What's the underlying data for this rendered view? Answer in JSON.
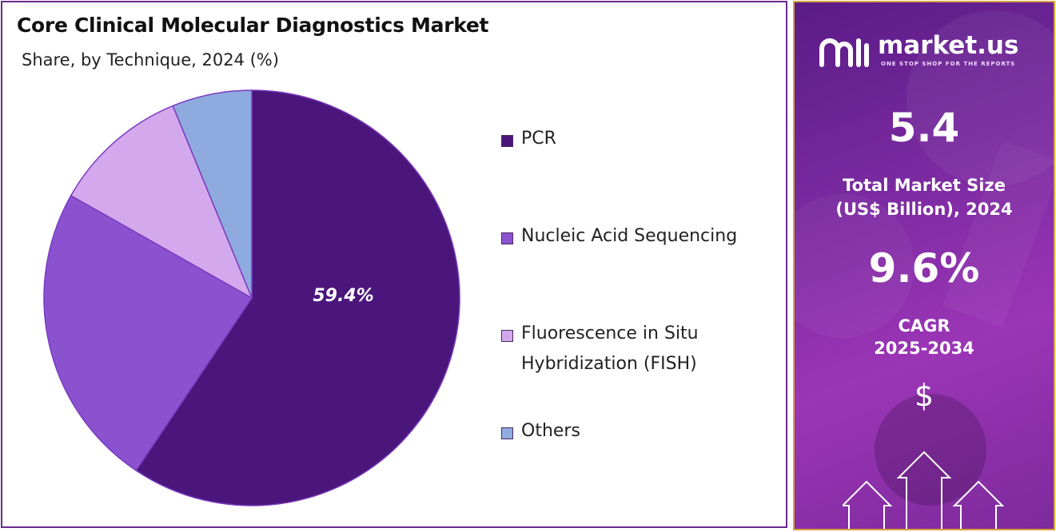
{
  "left": {
    "title": "Core Clinical Molecular Diagnostics Market",
    "subtitle": "Share, by Technique, 2024 (%)"
  },
  "legend": [
    {
      "label": "PCR",
      "color": "#4b167c"
    },
    {
      "label": "Nucleic Acid Sequencing",
      "color": "#8b52d0"
    },
    {
      "label": "Fluorescence in Situ Hybridization (FISH)",
      "color": "#d4a8ec"
    },
    {
      "label": "Others",
      "color": "#8faade"
    }
  ],
  "chart_data": {
    "type": "pie",
    "title": "Core Clinical Molecular Diagnostics Market",
    "subtitle": "Share, by Technique, 2024 (%)",
    "categories": [
      "PCR",
      "Nucleic Acid Sequencing",
      "Fluorescence in Situ Hybridization (FISH)",
      "Others"
    ],
    "values": [
      59.4,
      23.8,
      10.6,
      6.2
    ],
    "colors": [
      "#4b167c",
      "#8b52d0",
      "#d4a8ec",
      "#8faade"
    ],
    "data_labels": [
      "59.4%",
      "",
      "",
      ""
    ],
    "legend_position": "right"
  },
  "right": {
    "brand_name": "market.us",
    "brand_tagline": "ONE STOP SHOP FOR THE REPORTS",
    "market_size_value": "5.4",
    "market_size_label": "Total Market Size (US$ Billion), 2024",
    "cagr_value": "9.6%",
    "cagr_label": "CAGR",
    "cagr_period": "2025-2034",
    "dollar_symbol": "$",
    "icons": [
      "market-us-logo-icon",
      "dollar-icon",
      "up-arrows-icon"
    ]
  }
}
